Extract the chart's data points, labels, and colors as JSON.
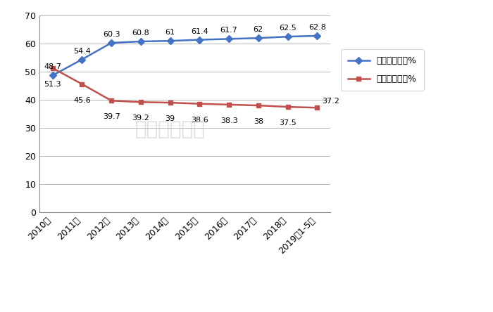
{
  "categories": [
    "2010年",
    "2011年",
    "2012年",
    "2013年",
    "2014年",
    "2015年",
    "2016年",
    "2017年",
    "2018年",
    "2019年1-5月"
  ],
  "dual_row": [
    48.7,
    54.4,
    60.3,
    60.8,
    61,
    61.4,
    61.7,
    62,
    62.5,
    62.8
  ],
  "single_row": [
    51.3,
    45.6,
    39.7,
    39.2,
    39,
    38.6,
    38.3,
    38,
    37.5,
    37.2
  ],
  "dual_color": "#4472C4",
  "single_color": "#C0504D",
  "marker_dual": "D",
  "marker_single": "s",
  "ylim": [
    0,
    70
  ],
  "yticks": [
    0,
    10,
    20,
    30,
    40,
    50,
    60,
    70
  ],
  "legend_dual": "双排座位占比%",
  "legend_single": "单排座位占比%",
  "watermark": "商用汽车总站",
  "bg_color": "#ffffff",
  "grid_color": "#aaaaaa"
}
